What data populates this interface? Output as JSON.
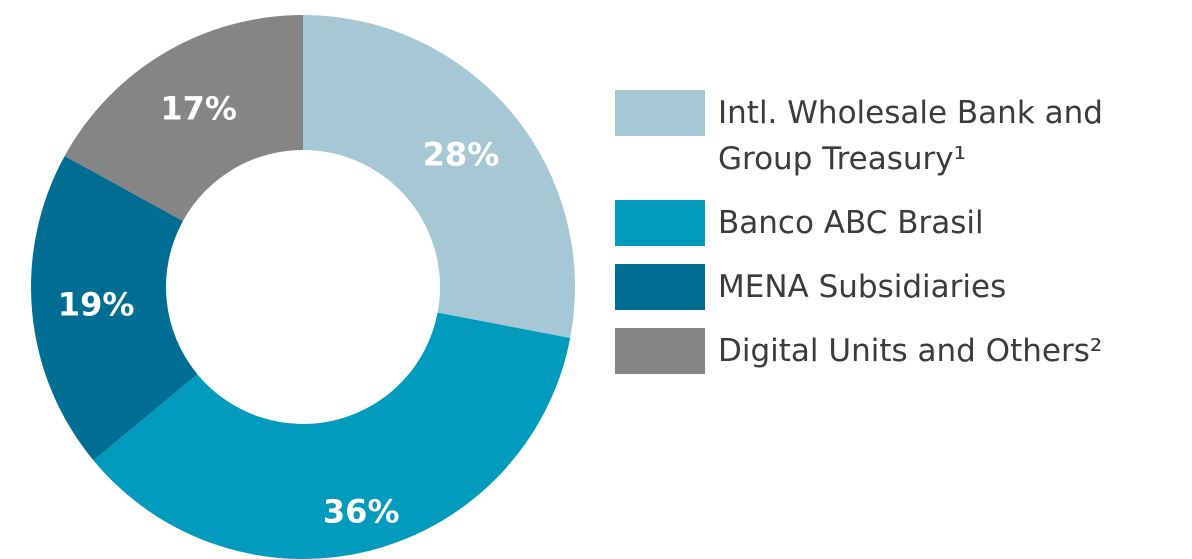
{
  "chart_data": {
    "type": "donut",
    "categories": [
      "Intl. Wholesale Bank and Group Treasury¹",
      "Banco ABC Brasil",
      "MENA Subsidiaries",
      "Digital Units and Others²"
    ],
    "values": [
      28,
      36,
      19,
      17
    ],
    "value_labels": [
      "28%",
      "36%",
      "19%",
      "17%"
    ],
    "colors": [
      "#a6c8d4",
      "#009bbd",
      "#006e92",
      "#858585"
    ]
  }
}
